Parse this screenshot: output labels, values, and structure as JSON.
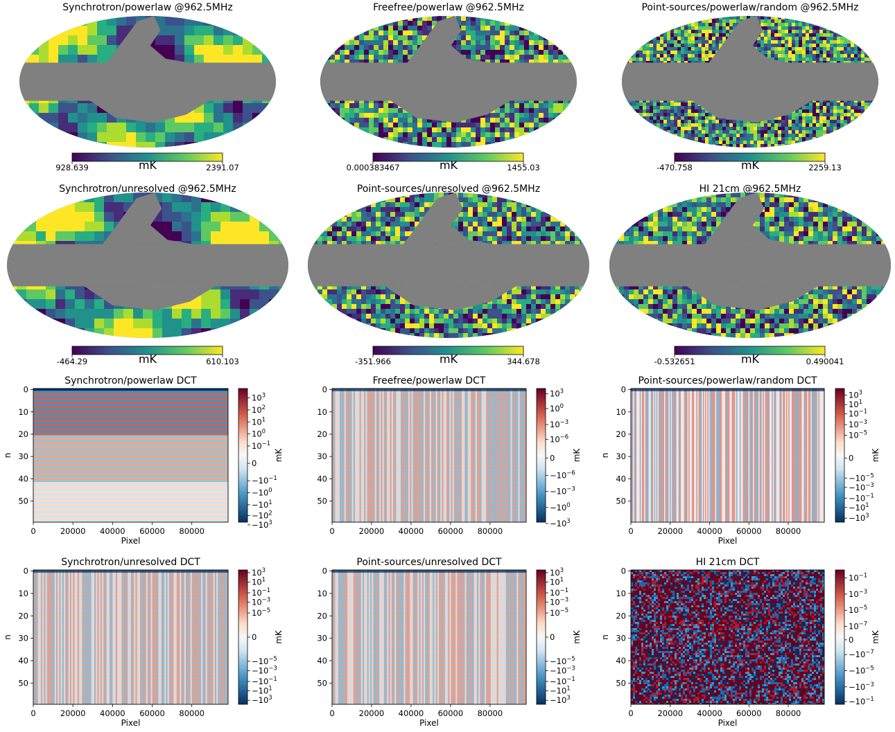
{
  "chart_data": [
    {
      "type": "heatmap",
      "projection": "mollweide",
      "title": "Synchrotron/powerlaw @962.5MHz",
      "colormap": "viridis",
      "colorbar": {
        "min_label": "928.639",
        "max_label": "2391.07",
        "unit": "mK",
        "range": [
          928.639,
          2391.07
        ]
      },
      "masked_region": "galactic plane band and upper-central region shown in gray",
      "texture": "smooth"
    },
    {
      "type": "heatmap",
      "projection": "mollweide",
      "title": "Freefree/powerlaw @962.5MHz",
      "colormap": "viridis",
      "colorbar": {
        "min_label": "0.000383467",
        "max_label": "1455.03",
        "unit": "mK",
        "range": [
          0.000383467,
          1455.03
        ]
      },
      "masked_region": "galactic plane band and upper-central region shown in gray",
      "texture": "noisy"
    },
    {
      "type": "heatmap",
      "projection": "mollweide",
      "title": "Point-sources/powerlaw/random @962.5MHz",
      "colormap": "viridis",
      "colorbar": {
        "min_label": "-470.758",
        "max_label": "2259.13",
        "unit": "mK",
        "range": [
          -470.758,
          2259.13
        ]
      },
      "masked_region": "galactic plane band and upper-central region shown in gray",
      "texture": "fine noise"
    },
    {
      "type": "heatmap",
      "projection": "mollweide",
      "title": "Synchrotron/unresolved @962.5MHz",
      "colormap": "viridis",
      "colorbar": {
        "min_label": "-464.29",
        "max_label": "610.103",
        "unit": "mK",
        "range": [
          -464.29,
          610.103
        ]
      },
      "masked_region": "galactic plane band and upper-central region shown in gray",
      "texture": "smooth"
    },
    {
      "type": "heatmap",
      "projection": "mollweide",
      "title": "Point-sources/unresolved @962.5MHz",
      "colormap": "viridis",
      "colorbar": {
        "min_label": "-351.966",
        "max_label": "344.678",
        "unit": "mK",
        "range": [
          -351.966,
          344.678
        ]
      },
      "masked_region": "galactic plane band and upper-central region shown in gray",
      "texture": "noisy"
    },
    {
      "type": "heatmap",
      "projection": "mollweide",
      "title": "HI 21cm @962.5MHz",
      "colormap": "viridis",
      "colorbar": {
        "min_label": "-0.532651",
        "max_label": "0.490041",
        "unit": "mK",
        "range": [
          -0.532651,
          0.490041
        ]
      },
      "masked_region": "galactic plane band and upper-central region shown in gray",
      "texture": "noisy"
    },
    {
      "type": "heatmap",
      "title": "Synchrotron/powerlaw DCT",
      "xlabel": "Pixel",
      "ylabel": "n",
      "xticks": [
        "0",
        "20000",
        "40000",
        "60000",
        "80000"
      ],
      "xtick_values": [
        0,
        20000,
        40000,
        60000,
        80000
      ],
      "xlim": [
        0,
        98304
      ],
      "yticks": [
        "0",
        "10",
        "20",
        "30",
        "40",
        "50"
      ],
      "ytick_values": [
        0,
        10,
        20,
        30,
        40,
        50
      ],
      "ylim": [
        59,
        0
      ],
      "colormap": "RdBu_r",
      "scale": "symlog",
      "colorbar": {
        "label": "mK",
        "ticks": [
          "10^3",
          "10^2",
          "10^1",
          "10^0",
          "10^-1",
          "0",
          "-10^-1",
          "-10^0",
          "-10^1",
          "-10^2",
          "-10^3"
        ],
        "tick_fractions": [
          0.07,
          0.16,
          0.25,
          0.34,
          0.43,
          0.56,
          0.69,
          0.78,
          0.87,
          0.95,
          1.02
        ]
      },
      "pattern": "horizontal bands"
    },
    {
      "type": "heatmap",
      "title": "Freefree/powerlaw DCT",
      "xlabel": "",
      "ylabel": "",
      "xticks": [
        "0",
        "20000",
        "40000",
        "60000",
        "80000"
      ],
      "xtick_values": [
        0,
        20000,
        40000,
        60000,
        80000
      ],
      "xlim": [
        0,
        98304
      ],
      "yticks": [
        "0",
        "10",
        "20",
        "30",
        "40",
        "50"
      ],
      "ytick_values": [
        0,
        10,
        20,
        30,
        40,
        50
      ],
      "ylim": [
        59,
        0
      ],
      "colormap": "RdBu_r",
      "scale": "symlog",
      "colorbar": {
        "label": "mK",
        "ticks": [
          "10^3",
          "10^0",
          "10^-3",
          "10^-6",
          "0",
          "-10^-6",
          "-10^-3",
          "-10^0",
          "-10^3"
        ],
        "tick_fractions": [
          0.04,
          0.15,
          0.27,
          0.38,
          0.52,
          0.65,
          0.77,
          0.89,
          1.01
        ]
      },
      "pattern": "vertical stripes with horizontal bands"
    },
    {
      "type": "heatmap",
      "title": "Point-sources/powerlaw/random DCT",
      "xlabel": "Pixel",
      "ylabel": "n",
      "xticks": [
        "0",
        "20000",
        "40000",
        "60000",
        "80000"
      ],
      "xtick_values": [
        0,
        20000,
        40000,
        60000,
        80000
      ],
      "xlim": [
        0,
        98304
      ],
      "yticks": [
        "0",
        "10",
        "20",
        "30",
        "40",
        "50"
      ],
      "ytick_values": [
        0,
        10,
        20,
        30,
        40,
        50
      ],
      "ylim": [
        59,
        0
      ],
      "colormap": "RdBu_r",
      "scale": "symlog",
      "colorbar": {
        "label": "mK",
        "ticks": [
          "10^3",
          "10^1",
          "10^-1",
          "10^-3",
          "10^-5",
          "0",
          "-10^-5",
          "-10^-3",
          "-10^-1",
          "-10^1",
          "-10^3"
        ],
        "tick_fractions": [
          0.05,
          0.12,
          0.19,
          0.27,
          0.35,
          0.52,
          0.67,
          0.74,
          0.82,
          0.89,
          0.97
        ]
      },
      "pattern": "dense vertical stripes"
    },
    {
      "type": "heatmap",
      "title": "Synchrotron/unresolved DCT",
      "xlabel": "Pixel",
      "ylabel": "n",
      "xticks": [
        "0",
        "20000",
        "40000",
        "60000",
        "80000"
      ],
      "xtick_values": [
        0,
        20000,
        40000,
        60000,
        80000
      ],
      "xlim": [
        0,
        98304
      ],
      "yticks": [
        "0",
        "10",
        "20",
        "30",
        "40",
        "50"
      ],
      "ytick_values": [
        0,
        10,
        20,
        30,
        40,
        50
      ],
      "ylim": [
        59,
        0
      ],
      "colormap": "RdBu_r",
      "scale": "symlog",
      "colorbar": {
        "label": "mK",
        "ticks": [
          "10^3",
          "10^1",
          "10^-1",
          "10^-3",
          "10^-5",
          "0",
          "-10^-5",
          "-10^-3",
          "-10^-1",
          "-10^1",
          "-10^3"
        ],
        "tick_fractions": [
          0.02,
          0.09,
          0.17,
          0.24,
          0.32,
          0.5,
          0.68,
          0.75,
          0.83,
          0.9,
          0.97
        ]
      },
      "pattern": "horizontal bands with vertical stripes"
    },
    {
      "type": "heatmap",
      "title": "Point-sources/unresolved DCT",
      "xlabel": "Pixel",
      "ylabel": "",
      "xticks": [
        "0",
        "20000",
        "40000",
        "60000",
        "80000"
      ],
      "xtick_values": [
        0,
        20000,
        40000,
        60000,
        80000
      ],
      "xlim": [
        0,
        98304
      ],
      "yticks": [
        "0",
        "10",
        "20",
        "30",
        "40",
        "50"
      ],
      "ytick_values": [
        0,
        10,
        20,
        30,
        40,
        50
      ],
      "ylim": [
        59,
        0
      ],
      "colormap": "RdBu_r",
      "scale": "symlog",
      "colorbar": {
        "label": "mK",
        "ticks": [
          "10^3",
          "10^1",
          "10^-1",
          "10^-3",
          "10^-5",
          "0",
          "-10^-5",
          "-10^-3",
          "-10^-1",
          "-10^1",
          "-10^3"
        ],
        "tick_fractions": [
          0.02,
          0.09,
          0.17,
          0.24,
          0.32,
          0.5,
          0.68,
          0.75,
          0.83,
          0.9,
          0.97
        ]
      },
      "pattern": "horizontal bands with vertical stripes"
    },
    {
      "type": "heatmap",
      "title": "HI 21cm DCT",
      "xlabel": "Pixel",
      "ylabel": "n",
      "xticks": [
        "0",
        "20000",
        "40000",
        "60000",
        "80000"
      ],
      "xtick_values": [
        0,
        20000,
        40000,
        60000,
        80000
      ],
      "xlim": [
        0,
        98304
      ],
      "yticks": [
        "0",
        "10",
        "20",
        "30",
        "40",
        "50"
      ],
      "ytick_values": [
        0,
        10,
        20,
        30,
        40,
        50
      ],
      "ylim": [
        59,
        0
      ],
      "colormap": "RdBu_r",
      "scale": "symlog",
      "colorbar": {
        "label": "mK",
        "ticks": [
          "10^-1",
          "10^-3",
          "10^-5",
          "10^-7",
          "0",
          "-10^-7",
          "-10^-5",
          "-10^-3",
          "-10^-1"
        ],
        "tick_fractions": [
          0.06,
          0.18,
          0.3,
          0.42,
          0.52,
          0.63,
          0.75,
          0.87,
          0.98
        ]
      },
      "pattern": "random noise"
    }
  ]
}
